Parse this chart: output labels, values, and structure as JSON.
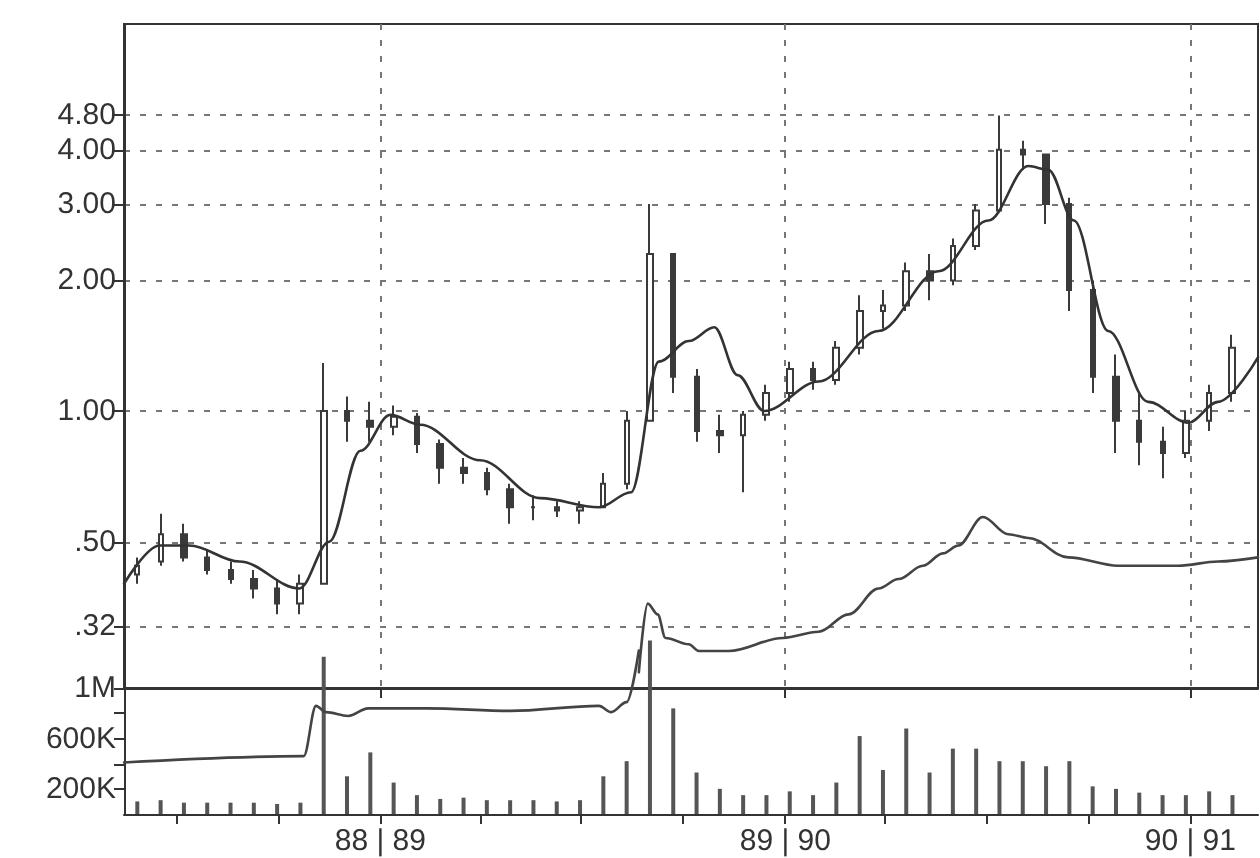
{
  "chart_data": [
    {
      "type": "candlestick",
      "color": "#3a3a3a",
      "log": true,
      "grid": true,
      "tick_labels": "y",
      "marker": "none",
      "line_style": "solid",
      "xlim": [
        "1988-05-15",
        "1991-03-03"
      ],
      "xticks": [
        {
          "value": "1989-01-01",
          "label": null
        },
        {
          "value": "1990-01-01",
          "label": null
        },
        {
          "value": "1991-01-01",
          "label": null
        }
      ],
      "ylim": [
        0.23,
        7.8
      ],
      "yticks": [
        {
          "value": 0.32,
          "label": ".32"
        },
        {
          "value": 0.5,
          "label": ".50"
        },
        {
          "value": 1,
          "label": "1.00"
        },
        {
          "value": 2,
          "label": "2.00"
        },
        {
          "value": 3,
          "label": "3.00"
        },
        {
          "value": 4,
          "label": "4.00"
        },
        {
          "value": 4.8,
          "label": "4.80"
        }
      ],
      "x": [
        "1988-05-27",
        "1988-06-17",
        "1988-07-08",
        "1988-07-29",
        "1988-08-19",
        "1988-09-09",
        "1988-09-30",
        "1988-10-21",
        "1988-11-11",
        "1988-12-02",
        "1988-12-23",
        "1989-01-13",
        "1989-02-03",
        "1989-02-24",
        "1989-03-17",
        "1989-04-07",
        "1989-04-28",
        "1989-05-19",
        "1989-06-09",
        "1989-06-30",
        "1989-07-21",
        "1989-08-11",
        "1989-09-01",
        "1989-09-22",
        "1989-10-13",
        "1989-11-03",
        "1989-11-24",
        "1989-12-15",
        "1990-01-05",
        "1990-01-26",
        "1990-02-16",
        "1990-03-09",
        "1990-03-30",
        "1990-04-20",
        "1990-05-11",
        "1990-06-01",
        "1990-06-22",
        "1990-07-13",
        "1990-08-03",
        "1990-08-24",
        "1990-09-14",
        "1990-10-05",
        "1990-10-26",
        "1990-11-16",
        "1990-12-07",
        "1990-12-28",
        "1991-01-18",
        "1991-02-08"
      ],
      "ohlc": [
        [
          0.42,
          0.46,
          0.4,
          0.44
        ],
        [
          0.45,
          0.58,
          0.44,
          0.52
        ],
        [
          0.52,
          0.55,
          0.45,
          0.46
        ],
        [
          0.46,
          0.48,
          0.42,
          0.43
        ],
        [
          0.43,
          0.45,
          0.4,
          0.41
        ],
        [
          0.41,
          0.43,
          0.37,
          0.39
        ],
        [
          0.39,
          0.41,
          0.34,
          0.36
        ],
        [
          0.36,
          0.42,
          0.34,
          0.4
        ],
        [
          0.4,
          1.29,
          0.4,
          1.0
        ],
        [
          1.0,
          1.08,
          0.85,
          0.95
        ],
        [
          0.95,
          1.05,
          0.85,
          0.92
        ],
        [
          0.92,
          1.03,
          0.88,
          0.97
        ],
        [
          0.97,
          0.99,
          0.8,
          0.84
        ],
        [
          0.84,
          0.86,
          0.68,
          0.74
        ],
        [
          0.74,
          0.78,
          0.68,
          0.72
        ],
        [
          0.72,
          0.74,
          0.64,
          0.66
        ],
        [
          0.66,
          0.68,
          0.55,
          0.6
        ],
        [
          0.6,
          0.64,
          0.56,
          0.6
        ],
        [
          0.6,
          0.62,
          0.57,
          0.59
        ],
        [
          0.59,
          0.62,
          0.55,
          0.6
        ],
        [
          0.6,
          0.72,
          0.6,
          0.68
        ],
        [
          0.68,
          1.0,
          0.66,
          0.95
        ],
        [
          0.95,
          3.0,
          0.95,
          2.3
        ],
        [
          2.3,
          2.3,
          1.1,
          1.2
        ],
        [
          1.2,
          1.25,
          0.85,
          0.9
        ],
        [
          0.9,
          0.98,
          0.8,
          0.88
        ],
        [
          0.88,
          1.0,
          0.65,
          0.98
        ],
        [
          0.98,
          1.15,
          0.95,
          1.1
        ],
        [
          1.1,
          1.3,
          1.05,
          1.25
        ],
        [
          1.25,
          1.3,
          1.12,
          1.18
        ],
        [
          1.18,
          1.45,
          1.15,
          1.4
        ],
        [
          1.4,
          1.85,
          1.35,
          1.7
        ],
        [
          1.7,
          1.9,
          1.55,
          1.75
        ],
        [
          1.75,
          2.2,
          1.7,
          2.1
        ],
        [
          2.1,
          2.3,
          1.8,
          2.0
        ],
        [
          2.0,
          2.5,
          1.95,
          2.4
        ],
        [
          2.4,
          3.0,
          2.35,
          2.9
        ],
        [
          2.9,
          4.8,
          2.9,
          4.0
        ],
        [
          4.0,
          4.2,
          3.6,
          3.9
        ],
        [
          3.9,
          3.9,
          2.7,
          3.0
        ],
        [
          3.0,
          3.1,
          1.7,
          1.9
        ],
        [
          1.9,
          2.0,
          1.1,
          1.2
        ],
        [
          1.2,
          1.35,
          0.8,
          0.95
        ],
        [
          0.95,
          1.1,
          0.75,
          0.85
        ],
        [
          0.85,
          0.92,
          0.7,
          0.8
        ],
        [
          0.8,
          1.0,
          0.78,
          0.95
        ],
        [
          0.95,
          1.15,
          0.9,
          1.1
        ],
        [
          1.1,
          1.5,
          1.05,
          1.4
        ]
      ],
      "series": [
        {
          "type": "line",
          "color": "#333333",
          "x": [
            "1988-05-15",
            "1988-06-16",
            "1988-07-13",
            "1988-08-27",
            "1988-10-20",
            "1988-11-16",
            "1988-12-14",
            "1989-01-10",
            "1989-02-06",
            "1989-04-01",
            "1989-05-25",
            "1989-07-17",
            "1989-08-15",
            "1989-09-09",
            "1989-10-06",
            "1989-10-29",
            "1989-11-19",
            "1989-12-13",
            "1990-01-31",
            "1990-03-26",
            "1990-05-19",
            "1990-07-03",
            "1990-08-08",
            "1990-08-26",
            "1990-09-18",
            "1990-10-19",
            "1990-11-24",
            "1990-12-30",
            "1991-01-26",
            "1991-03-03"
          ],
          "values": [
            0.4,
            0.49,
            0.49,
            0.45,
            0.39,
            0.5,
            0.81,
            0.98,
            0.93,
            0.77,
            0.63,
            0.6,
            0.65,
            1.3,
            1.45,
            1.56,
            1.21,
            1.0,
            1.17,
            1.53,
            2.1,
            2.75,
            3.67,
            3.6,
            2.75,
            1.53,
            1.05,
            0.94,
            1.05,
            1.33
          ]
        },
        {
          "type": "line",
          "color": "#444444",
          "x": [
            "1989-08-22",
            "1989-08-30",
            "1989-09-08",
            "1989-09-15",
            "1989-10-06",
            "1989-10-15",
            "1989-11-11",
            "1989-12-30",
            "1990-01-31",
            "1990-02-27",
            "1990-03-26",
            "1990-04-13",
            "1990-05-05",
            "1990-05-23",
            "1990-06-06",
            "1990-06-28",
            "1990-07-21",
            "1990-08-08",
            "1990-09-13",
            "1990-10-28",
            "1990-12-21",
            "1991-01-26",
            "1991-03-03"
          ],
          "values": [
            0.25,
            0.36,
            0.34,
            0.3,
            0.29,
            0.28,
            0.28,
            0.3,
            0.31,
            0.34,
            0.39,
            0.41,
            0.44,
            0.47,
            0.49,
            0.57,
            0.52,
            0.51,
            0.46,
            0.44,
            0.44,
            0.45,
            0.46
          ]
        }
      ]
    },
    {
      "type": "bar",
      "marker": "none",
      "line_style": "solid",
      "xlim": [
        "1988-05-15",
        "1991-03-03"
      ],
      "xticks": [
        {
          "value": "1988-07-01",
          "label": null
        },
        {
          "value": "1988-10-01",
          "label": null
        },
        {
          "value": "1989-01-01",
          "label": "88 | 89"
        },
        {
          "value": "1989-04-01",
          "label": null
        },
        {
          "value": "1989-07-01",
          "label": null
        },
        {
          "value": "1989-10-01",
          "label": null
        },
        {
          "value": "1990-01-01",
          "label": "89 | 90"
        },
        {
          "value": "1990-04-01",
          "label": null
        },
        {
          "value": "1990-07-01",
          "label": null
        },
        {
          "value": "1990-10-01",
          "label": null
        },
        {
          "value": "1991-01-01",
          "label": "90 | 91"
        }
      ],
      "ylim": [
        0,
        1400000
      ],
      "yticks": [
        {
          "value": 200000,
          "label": "200K"
        },
        {
          "value": 400000,
          "label": null
        },
        {
          "value": 600000,
          "label": "600K"
        },
        {
          "value": 800000,
          "label": null
        },
        {
          "value": 1000000,
          "label": "1M"
        }
      ],
      "series": [
        {
          "type": "bar",
          "color": "#555555",
          "x": [
            "1988-05-27",
            "1988-06-17",
            "1988-07-08",
            "1988-07-29",
            "1988-08-19",
            "1988-09-09",
            "1988-09-30",
            "1988-10-21",
            "1988-11-11",
            "1988-12-02",
            "1988-12-23",
            "1989-01-13",
            "1989-02-03",
            "1989-02-24",
            "1989-03-17",
            "1989-04-07",
            "1989-04-28",
            "1989-05-19",
            "1989-06-09",
            "1989-06-30",
            "1989-07-21",
            "1989-08-11",
            "1989-09-01",
            "1989-09-22",
            "1989-10-13",
            "1989-11-03",
            "1989-11-24",
            "1989-12-15",
            "1990-01-05",
            "1990-01-26",
            "1990-02-16",
            "1990-03-09",
            "1990-03-30",
            "1990-04-20",
            "1990-05-11",
            "1990-06-01",
            "1990-06-22",
            "1990-07-13",
            "1990-08-03",
            "1990-08-24",
            "1990-09-14",
            "1990-10-05",
            "1990-10-26",
            "1990-11-16",
            "1990-12-07",
            "1990-12-28",
            "1991-01-18",
            "1991-02-08"
          ],
          "values": [
            100000,
            110000,
            90000,
            90000,
            90000,
            90000,
            80000,
            90000,
            1250000,
            300000,
            490000,
            250000,
            150000,
            120000,
            130000,
            110000,
            110000,
            110000,
            100000,
            110000,
            300000,
            420000,
            1380000,
            840000,
            330000,
            200000,
            150000,
            150000,
            180000,
            150000,
            250000,
            620000,
            350000,
            680000,
            330000,
            520000,
            520000,
            420000,
            420000,
            380000,
            420000,
            220000,
            200000,
            170000,
            150000,
            150000,
            180000,
            150000
          ]
        },
        {
          "type": "line",
          "color": "#444444",
          "x": [
            "1988-05-15",
            "1988-10-24",
            "1988-11-04",
            "1988-11-13",
            "1988-12-03",
            "1988-12-21",
            "1989-02-13",
            "1989-04-28",
            "1989-07-17",
            "1989-07-28",
            "1989-08-11",
            "1989-08-22"
          ],
          "values": [
            410000,
            460000,
            860000,
            810000,
            780000,
            840000,
            840000,
            820000,
            860000,
            810000,
            890000,
            1300000
          ]
        }
      ]
    }
  ]
}
